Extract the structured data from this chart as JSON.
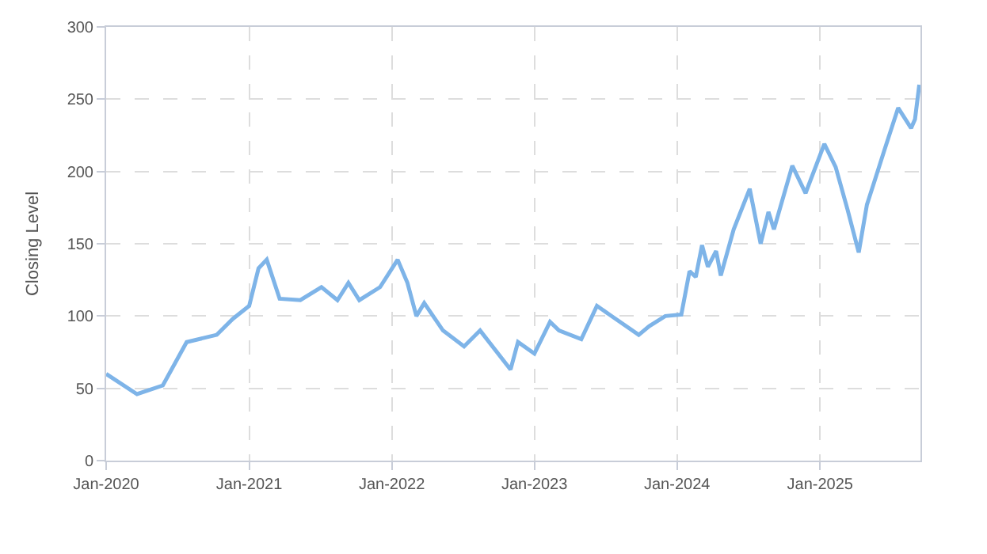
{
  "chart_data": {
    "type": "line",
    "ylabel": "Closing Level",
    "x": [
      "2020-01-01",
      "2020-03-20",
      "2020-05-25",
      "2020-07-25",
      "2020-10-10",
      "2020-11-20",
      "2021-01-01",
      "2021-01-25",
      "2021-02-15",
      "2021-03-20",
      "2021-05-12",
      "2021-07-05",
      "2021-08-15",
      "2021-09-12",
      "2021-10-10",
      "2021-12-02",
      "2022-01-16",
      "2022-02-10",
      "2022-03-05",
      "2022-03-25",
      "2022-05-12",
      "2022-07-05",
      "2022-08-15",
      "2022-11-01",
      "2022-11-20",
      "2023-01-01",
      "2023-02-10",
      "2023-03-05",
      "2023-05-01",
      "2023-06-10",
      "2023-07-12",
      "2023-09-25",
      "2023-10-22",
      "2023-12-02",
      "2024-01-12",
      "2024-02-02",
      "2024-02-18",
      "2024-03-05",
      "2024-03-20",
      "2024-04-10",
      "2024-04-22",
      "2024-05-25",
      "2024-07-05",
      "2024-08-02",
      "2024-08-22",
      "2024-09-05",
      "2024-10-22",
      "2024-11-25",
      "2025-01-12",
      "2025-02-10",
      "2025-03-12",
      "2025-04-10",
      "2025-05-01",
      "2025-05-20",
      "2025-06-15",
      "2025-07-20",
      "2025-08-22",
      "2025-09-01",
      "2025-09-12"
    ],
    "series": [
      {
        "color": "#7eb4e8",
        "values": [
          60,
          46,
          52,
          82,
          87,
          98,
          107,
          133,
          139,
          112,
          111,
          120,
          111,
          123,
          111,
          120,
          139,
          123,
          100,
          109,
          90,
          79,
          90,
          63,
          82,
          74,
          96,
          90,
          84,
          107,
          101,
          87,
          93,
          100,
          101,
          131,
          127,
          149,
          134,
          145,
          128,
          160,
          188,
          150,
          172,
          160,
          204,
          185,
          219,
          203,
          174,
          144,
          177,
          193,
          215,
          244,
          230,
          236,
          260
        ]
      }
    ],
    "xlim": [
      "2020-01-01",
      "2025-09-15"
    ],
    "xticks": [
      {
        "value": "2020-01-01",
        "label": "Jan-2020"
      },
      {
        "value": "2021-01-01",
        "label": "Jan-2021"
      },
      {
        "value": "2022-01-01",
        "label": "Jan-2022"
      },
      {
        "value": "2023-01-01",
        "label": "Jan-2023"
      },
      {
        "value": "2024-01-01",
        "label": "Jan-2024"
      },
      {
        "value": "2025-01-01",
        "label": "Jan-2025"
      }
    ],
    "ylim": [
      0,
      300
    ],
    "yticks": [
      0,
      50,
      100,
      150,
      200,
      250,
      300
    ],
    "grid": true,
    "marker": "none",
    "line_style": "solid"
  }
}
